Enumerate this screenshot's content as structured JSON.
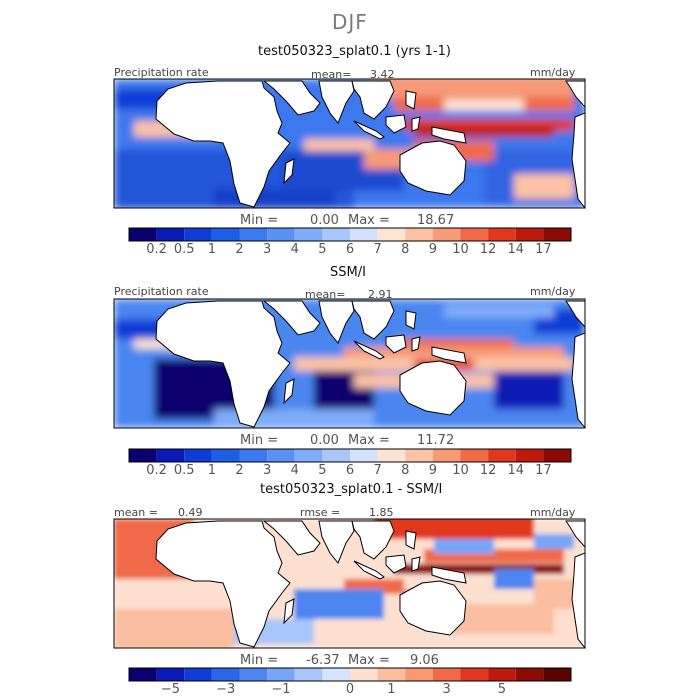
{
  "figure": {
    "season": "DJF",
    "panels": [
      {
        "title": "test050323_splat0.1 (yrs 1-1)",
        "header_left": "Precipitation rate",
        "header_mid_label": "mean=",
        "header_mid_value": "3.42",
        "units": "mm/day",
        "min_label": "Min =",
        "min_value": "0.00",
        "max_label": "Max =",
        "max_value": "18.67"
      },
      {
        "title": "SSM/I",
        "header_left": "Precipitation rate",
        "header_mid_label": "mean=",
        "header_mid_value": "2.91",
        "units": "mm/day",
        "min_label": "Min =",
        "min_value": "0.00",
        "max_label": "Max =",
        "max_value": "11.72"
      },
      {
        "title": "test050323_splat0.1 - SSM/I",
        "header_left_label": "mean =",
        "header_left_value": "0.49",
        "header_mid_label": "rmse =",
        "header_mid_value": "1.85",
        "units": "mm/day",
        "min_label": "Min =",
        "min_value": "-6.37",
        "max_label": "Max =",
        "max_value": "9.06"
      }
    ]
  },
  "chart_data": [
    {
      "type": "heatmap",
      "title": "test050323_splat0.1 (yrs 1-1)",
      "variable": "Precipitation rate",
      "units": "mm/day",
      "mean": 3.42,
      "min": 0.0,
      "max": 18.67,
      "colorbar_levels": [
        0.2,
        0.5,
        1,
        2,
        3,
        4,
        5,
        6,
        7,
        8,
        9,
        10,
        12,
        14,
        17
      ],
      "colorbar_ticklabels": [
        "0.2",
        "0.5",
        "1",
        "2",
        "3",
        "4",
        "5",
        "6",
        "7",
        "8",
        "9",
        "10",
        "12",
        "14",
        "17"
      ]
    },
    {
      "type": "heatmap",
      "title": "SSM/I",
      "variable": "Precipitation rate",
      "units": "mm/day",
      "mean": 2.91,
      "min": 0.0,
      "max": 11.72,
      "colorbar_levels": [
        0.2,
        0.5,
        1,
        2,
        3,
        4,
        5,
        6,
        7,
        8,
        9,
        10,
        12,
        14,
        17
      ],
      "colorbar_ticklabels": [
        "0.2",
        "0.5",
        "1",
        "2",
        "3",
        "4",
        "5",
        "6",
        "7",
        "8",
        "9",
        "10",
        "12",
        "14",
        "17"
      ]
    },
    {
      "type": "heatmap",
      "title": "test050323_splat0.1 - SSM/I",
      "units": "mm/day",
      "mean": 0.49,
      "rmse": 1.85,
      "min": -6.37,
      "max": 9.06,
      "colorbar_levels": [
        -6,
        -5,
        -4,
        -3,
        -2,
        -1,
        -0.5,
        0,
        0.5,
        1,
        2,
        3,
        4,
        5,
        6
      ],
      "colorbar_ticklabels": [
        "−5",
        "−3",
        "−1",
        "0",
        "1",
        "3",
        "5"
      ]
    }
  ],
  "colors": {
    "bar_abs": [
      "#08006e",
      "#0a1ab4",
      "#0f3cd6",
      "#1e5ee6",
      "#3c78ee",
      "#5a92f4",
      "#7eacf8",
      "#a8c6fa",
      "#d2e2fc",
      "#fde3d4",
      "#fbc2a6",
      "#f79a78",
      "#f06a48",
      "#e0381e",
      "#bd1a0d",
      "#8c0a04"
    ],
    "bar_diff": [
      "#08006e",
      "#0a1ab4",
      "#0f3cd6",
      "#2c66e8",
      "#4e86f0",
      "#78a6f6",
      "#a8c6fa",
      "#d6e4fc",
      "#fde0d0",
      "#fbbea0",
      "#f79870",
      "#f06a48",
      "#e0381e",
      "#bd1a0d",
      "#8c0a04",
      "#5a0402"
    ],
    "land": "#ffffff",
    "coast": "#000000"
  }
}
